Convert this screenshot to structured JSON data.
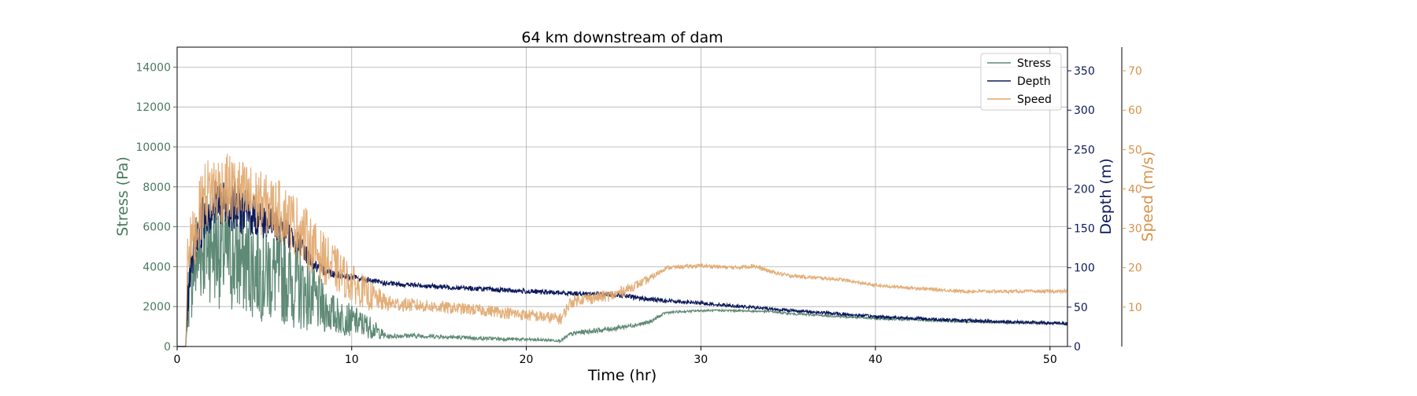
{
  "chart_data": {
    "type": "line",
    "title": "64 km downstream of dam",
    "xlabel": "Time (hr)",
    "xlim": [
      0,
      51
    ],
    "xticks": [
      0,
      10,
      20,
      30,
      40,
      50
    ],
    "grid": true,
    "legend_position": "top-right",
    "axes": {
      "stress": {
        "label": "Stress (Pa)",
        "ylim": [
          0,
          15000
        ],
        "ticks": [
          0,
          2000,
          4000,
          6000,
          8000,
          10000,
          12000,
          14000
        ],
        "color": "#4a7a5e"
      },
      "depth": {
        "label": "Depth (m)",
        "ylim": [
          0,
          380
        ],
        "ticks": [
          0,
          50,
          100,
          150,
          200,
          250,
          300,
          350
        ],
        "color": "#0c1a5a"
      },
      "speed": {
        "label": "Speed (m/s)",
        "ylim": [
          0,
          76
        ],
        "ticks": [
          10,
          20,
          30,
          40,
          50,
          60,
          70
        ],
        "color": "#d9924a"
      }
    },
    "series": [
      {
        "name": "Stress",
        "axis": "stress",
        "color": "#5f8a76",
        "x": [
          0,
          0.5,
          0.6,
          1.0,
          1.5,
          2.0,
          2.5,
          3.0,
          3.5,
          4.0,
          5.0,
          6.0,
          7.0,
          8.0,
          9.0,
          10.0,
          11.0,
          12.0,
          13.0,
          15.0,
          17.0,
          20.0,
          22.0,
          22.5,
          23.0,
          25.0,
          27.0,
          28.0,
          30.0,
          32.0,
          34.0,
          35.0,
          40.0,
          45.0,
          51.0
        ],
        "y": [
          0,
          0,
          2500,
          4200,
          5000,
          5200,
          4800,
          4500,
          4300,
          4200,
          3800,
          3500,
          3000,
          2200,
          1600,
          1300,
          1000,
          500,
          550,
          500,
          420,
          350,
          300,
          600,
          700,
          900,
          1200,
          1700,
          1800,
          1800,
          1750,
          1650,
          1400,
          1250,
          1150
        ],
        "noise": [
          0,
          0,
          1800,
          2500,
          2800,
          3000,
          3000,
          2900,
          2800,
          2700,
          2600,
          2400,
          2200,
          1500,
          1000,
          800,
          600,
          120,
          120,
          100,
          90,
          80,
          70,
          120,
          120,
          120,
          100,
          60,
          50,
          50,
          50,
          50,
          50,
          50,
          50
        ]
      },
      {
        "name": "Depth",
        "axis": "depth",
        "color": "#0c1a5a",
        "x": [
          0,
          0.5,
          0.6,
          1.0,
          1.5,
          2.0,
          3.0,
          4.0,
          5.0,
          6.0,
          7.0,
          8.0,
          9.0,
          10.0,
          12.0,
          15.0,
          20.0,
          22.0,
          25.0,
          27.0,
          30.0,
          35.0,
          40.0,
          45.0,
          51.0
        ],
        "y": [
          0,
          0,
          60,
          130,
          165,
          180,
          180,
          170,
          160,
          150,
          130,
          100,
          92,
          88,
          80,
          76,
          70,
          68,
          66,
          60,
          55,
          46,
          38,
          33,
          29
        ],
        "noise": [
          0,
          0,
          20,
          30,
          35,
          35,
          33,
          30,
          25,
          20,
          15,
          8,
          5,
          4,
          3,
          3,
          3,
          3,
          3,
          3,
          2,
          2,
          2,
          2,
          2
        ]
      },
      {
        "name": "Speed",
        "axis": "speed",
        "color": "#e0a66a",
        "x": [
          0,
          0.5,
          0.6,
          1.0,
          1.5,
          2.0,
          2.5,
          3.0,
          4.0,
          5.0,
          6.0,
          7.0,
          8.0,
          9.0,
          10.0,
          11.0,
          12.0,
          15.0,
          18.0,
          20.0,
          22.0,
          22.5,
          23.0,
          25.0,
          26.0,
          27.0,
          28.0,
          30.0,
          32.0,
          33.0,
          34.0,
          35.0,
          38.0,
          40.0,
          45.0,
          51.0
        ],
        "y": [
          0,
          0,
          25,
          28,
          38,
          40,
          40,
          40,
          38,
          36,
          34,
          30,
          24,
          20,
          16,
          13,
          11,
          10,
          9,
          8,
          7,
          11,
          12,
          13,
          15,
          17,
          20,
          20.5,
          20,
          20.5,
          19,
          18,
          17,
          15.5,
          14,
          14
        ],
        "noise": [
          0,
          0,
          6,
          8,
          9,
          9,
          9,
          9,
          9,
          8,
          8,
          8,
          7,
          6,
          5,
          4,
          2,
          1.5,
          1.5,
          1.5,
          1.5,
          1.5,
          1.5,
          1.5,
          1.2,
          1,
          0.5,
          0.5,
          0.5,
          0.6,
          0.5,
          0.5,
          0.4,
          0.4,
          0.4,
          0.4
        ]
      }
    ]
  }
}
